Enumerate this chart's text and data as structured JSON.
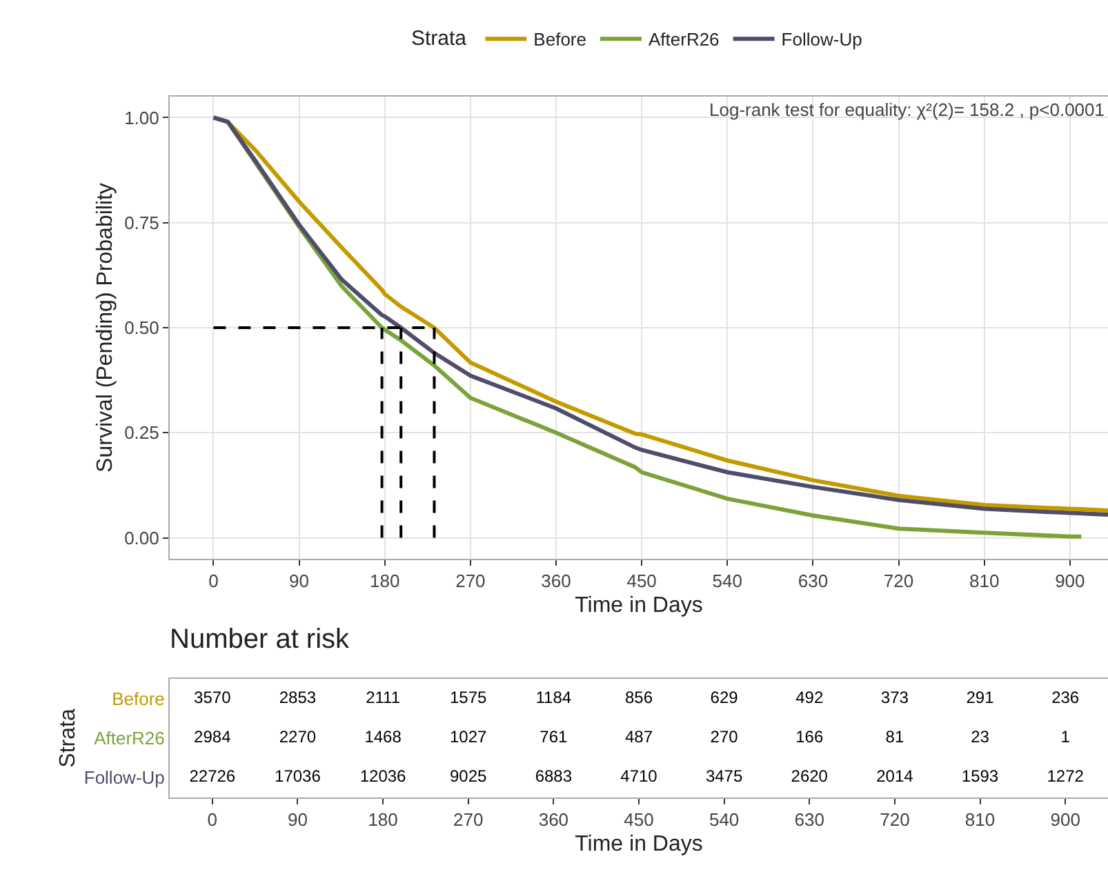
{
  "chart_data": [
    {
      "type": "line",
      "xlabel": "Time in Days",
      "ylabel": "Survival (Pending) Probability",
      "legend_title": "Strata",
      "legend": "top",
      "x": [
        0,
        15,
        45,
        90,
        135,
        177,
        180,
        197,
        232,
        270,
        360,
        443,
        450,
        540,
        630,
        720,
        810,
        900,
        912,
        940
      ],
      "series": [
        {
          "name": "Before",
          "color": "#c49a00",
          "values": [
            1,
            0.99,
            0.92,
            0.8,
            0.69,
            0.59,
            0.58,
            0.55,
            0.5,
            0.417,
            0.324,
            0.248,
            0.246,
            0.184,
            0.137,
            0.1,
            0.078,
            0.069,
            0.068,
            0.065
          ]
        },
        {
          "name": "AfterR26",
          "color": "#7ba33a",
          "values": [
            1,
            0.99,
            0.89,
            0.74,
            0.598,
            0.5,
            0.495,
            0.47,
            0.41,
            0.333,
            0.25,
            0.168,
            0.156,
            0.093,
            0.053,
            0.022,
            0.012,
            0.003,
            0.003,
            null
          ]
        },
        {
          "name": "Follow-Up",
          "color": "#4f4d6a",
          "values": [
            1,
            0.99,
            0.894,
            0.745,
            0.614,
            0.53,
            0.527,
            0.5,
            0.44,
            0.386,
            0.308,
            0.215,
            0.209,
            0.156,
            0.121,
            0.09,
            0.069,
            0.059,
            0.058,
            0.055
          ]
        }
      ],
      "xlim": [
        -46,
        940
      ],
      "xticks": [
        0,
        90,
        180,
        270,
        360,
        450,
        540,
        630,
        720,
        810,
        900
      ],
      "ylim": [
        -0.05,
        1.05
      ],
      "yticks": [
        {
          "value": 0,
          "label": "0.00"
        },
        {
          "value": 0.25,
          "label": "0.25"
        },
        {
          "value": 0.5,
          "label": "0.50"
        },
        {
          "value": 0.75,
          "label": "0.75"
        },
        {
          "value": 1,
          "label": "1.00"
        }
      ],
      "grid": true,
      "marker": "none",
      "line_style": "solid",
      "ref_lines": [
        {
          "axis": "y",
          "value": 0.5,
          "color": "#000000",
          "line_style": "dashed"
        },
        {
          "axis": "x",
          "value": 177,
          "color": "#000000",
          "line_style": "dashed"
        },
        {
          "axis": "x",
          "value": 197,
          "color": "#000000",
          "line_style": "dashed"
        },
        {
          "axis": "x",
          "value": 232,
          "color": "#000000",
          "line_style": "dashed"
        }
      ],
      "annotations": [
        "Log-rank test for equality: χ²(2)= 158.2 , p<0.0001"
      ]
    },
    {
      "type": "heatmap",
      "title": "Number at risk",
      "data_labels": true,
      "xlabel": "Time in Days",
      "ylabel": "Strata",
      "categories": [
        "0",
        "90",
        "180",
        "270",
        "360",
        "450",
        "540",
        "630",
        "720",
        "810",
        "900"
      ],
      "y_categories": [
        "Before",
        "AfterR26",
        "Follow-Up"
      ],
      "cells": [
        [
          3570,
          2853,
          2111,
          1575,
          1184,
          856,
          629,
          492,
          373,
          291,
          236
        ],
        [
          2984,
          2270,
          1468,
          1027,
          761,
          487,
          270,
          166,
          81,
          23,
          1
        ],
        [
          22726,
          17036,
          12036,
          9025,
          6883,
          4710,
          3475,
          2620,
          2014,
          1593,
          1272
        ]
      ]
    }
  ]
}
